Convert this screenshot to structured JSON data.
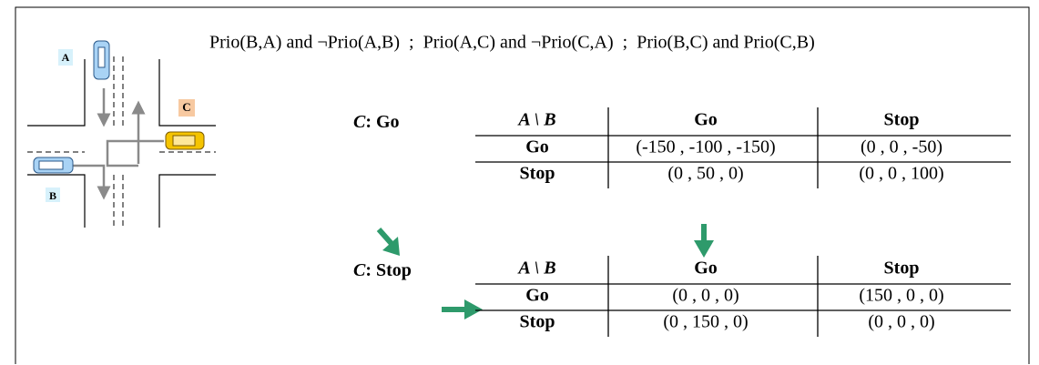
{
  "header": "Prio(B,A) and ¬Prio(A,B)  ;  Prio(A,C) and ¬Prio(C,A)  ;  Prio(B,C) and Prio(C,B)",
  "intersection": {
    "labels": [
      "A",
      "C",
      "B"
    ]
  },
  "tables": [
    {
      "player": "C",
      "action": ": Go",
      "corner": "A \\ B",
      "columns": [
        "Go",
        "Stop"
      ],
      "rows": [
        {
          "label": "Go",
          "cells": [
            "(-150 , -100 , -150)",
            "(0 , 0 , -50)"
          ]
        },
        {
          "label": "Stop",
          "cells": [
            "(0 , 50 , 0)",
            "(0 , 0 , 100)"
          ]
        }
      ]
    },
    {
      "player": "C",
      "action": ": Stop",
      "corner": "A \\ B",
      "columns": [
        "Go",
        "Stop"
      ],
      "rows": [
        {
          "label": "Go",
          "cells": [
            "(0 , 0 , 0)",
            "(150 , 0 , 0)"
          ]
        },
        {
          "label": "Stop",
          "cells": [
            "(0 , 150 , 0)",
            "(0 , 0 , 0)"
          ]
        }
      ]
    }
  ]
}
